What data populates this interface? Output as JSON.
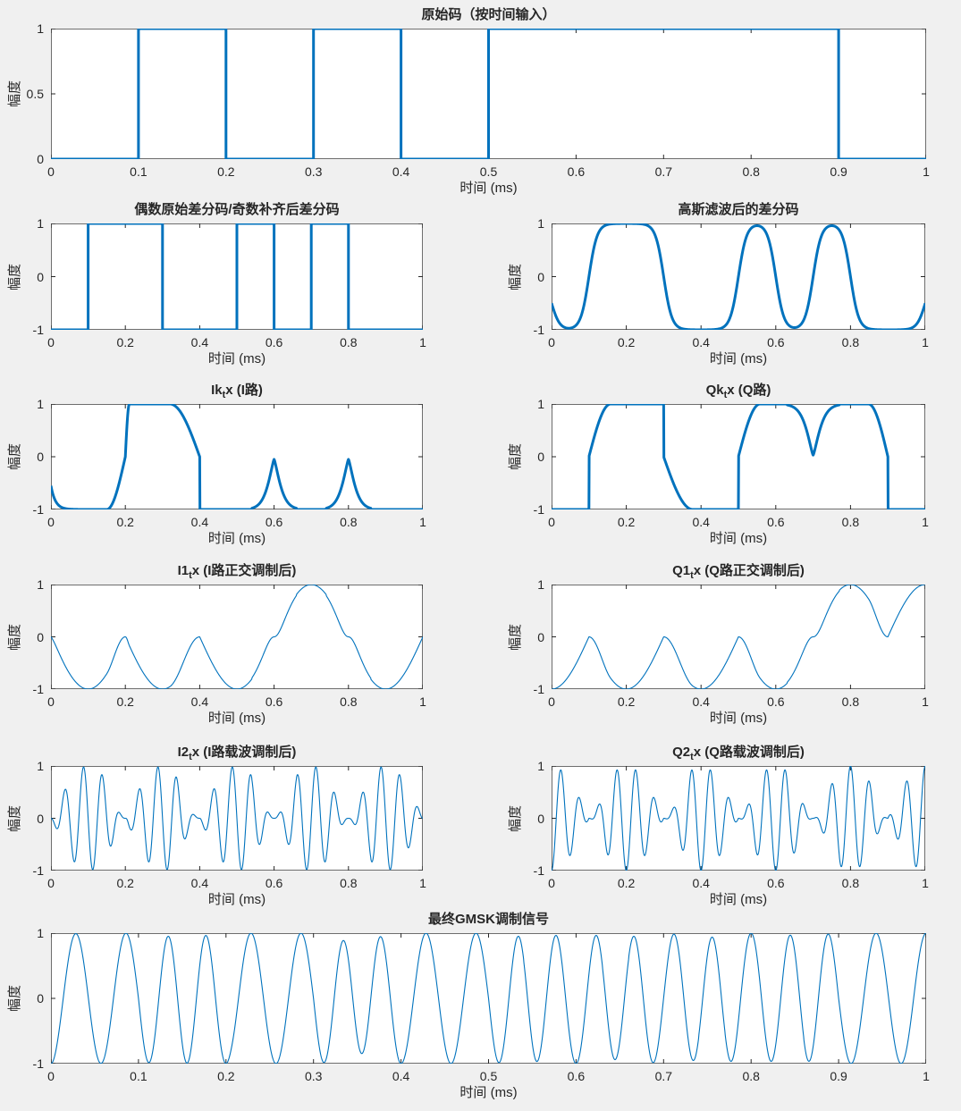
{
  "figure": {
    "background": "#f0f0f0",
    "axes_background": "#ffffff",
    "axis_color": "#262626",
    "box_color": "#6e6e6e",
    "line_color": "#0072BD",
    "xlabel": "时间 (ms)",
    "ylabel": "幅度"
  },
  "chart_data": {
    "type": "line",
    "time_unit": "ms",
    "x_range_ms": [
      0,
      1
    ],
    "bit_duration_ms": 0.1,
    "original_bits": [
      0,
      1,
      0,
      1,
      0,
      1,
      1,
      1,
      1,
      0
    ],
    "differential_nrz": [
      -1,
      1,
      1,
      -1,
      -1,
      1,
      -1,
      1,
      -1,
      -1
    ],
    "gaussian_transition_tau_ms": 0.011,
    "quadrature_carrier_cycles_per_ms": 2.5,
    "rf_carrier_cycles_per_ms": 20,
    "formulas": {
      "i1": "Ik(t) * sin(2*pi*2.5*t)",
      "q1": "Qk(t) * cos(2*pi*2.5*t)",
      "i2": "I1(t) * sin(2*pi*20*t)",
      "q2": "Q1(t) * cos(2*pi*20*t)",
      "gmsk": "I2(t) + Q2(t)"
    },
    "subplots": [
      {
        "id": "p1",
        "name": "original-code",
        "title": {
          "pre": "原始码（按时间输入）",
          "sub": null,
          "post": null
        },
        "xlabel": "时间 (ms)",
        "ylabel": "幅度",
        "xlim": [
          0,
          1
        ],
        "ylim": [
          0,
          1
        ],
        "xticks": [
          0,
          0.1,
          0.2,
          0.3,
          0.4,
          0.5,
          0.6,
          0.7,
          0.8,
          0.9,
          1
        ],
        "xtick_labels": [
          "0",
          "0.1",
          "0.2",
          "0.3",
          "0.4",
          "0.5",
          "0.6",
          "0.7",
          "0.8",
          "0.9",
          "1"
        ],
        "yticks": [
          0,
          0.5,
          1
        ],
        "ytick_labels": [
          "0",
          "0.5",
          "1"
        ],
        "line_width": 3,
        "signal": {
          "kind": "steps",
          "name": "bits",
          "levels": [
            0,
            1,
            0,
            1,
            0,
            1,
            1,
            1,
            1,
            0
          ]
        }
      },
      {
        "id": "p2",
        "name": "differential-code",
        "title": {
          "pre": "偶数原始差分码/奇数补齐后差分码",
          "sub": null,
          "post": null
        },
        "xlabel": "时间 (ms)",
        "ylabel": "幅度",
        "xlim": [
          0,
          1
        ],
        "ylim": [
          -1,
          1
        ],
        "xticks": [
          0,
          0.2,
          0.4,
          0.6,
          0.8,
          1
        ],
        "xtick_labels": [
          "0",
          "0.2",
          "0.4",
          "0.6",
          "0.8",
          "1"
        ],
        "yticks": [
          -1,
          0,
          1
        ],
        "ytick_labels": [
          "-1",
          "0",
          "1"
        ],
        "line_width": 3,
        "signal": {
          "kind": "steps",
          "name": "nrz",
          "levels": [
            -1,
            1,
            1,
            -1,
            -1,
            1,
            -1,
            1,
            -1,
            -1
          ]
        }
      },
      {
        "id": "p3",
        "name": "gaussian-filtered",
        "title": {
          "pre": "高斯滤波后的差分码",
          "sub": null,
          "post": null
        },
        "xlabel": "时间 (ms)",
        "ylabel": "幅度",
        "xlim": [
          0,
          1
        ],
        "ylim": [
          -1,
          1
        ],
        "xticks": [
          0,
          0.2,
          0.4,
          0.6,
          0.8,
          1
        ],
        "xtick_labels": [
          "0",
          "0.2",
          "0.4",
          "0.6",
          "0.8",
          "1"
        ],
        "yticks": [
          -1,
          0,
          1
        ],
        "ytick_labels": [
          "-1",
          "0",
          "1"
        ],
        "line_width": 3,
        "signal": {
          "kind": "gauss",
          "name": "g",
          "nrz": [
            -1,
            1,
            1,
            -1,
            -1,
            1,
            -1,
            1,
            -1,
            -1
          ],
          "tau": 0.011
        }
      },
      {
        "id": "p4",
        "name": "ik-channel",
        "title": {
          "pre": "Ik",
          "sub": "t",
          "post": "x (I路)"
        },
        "xlabel": "时间 (ms)",
        "ylabel": "幅度",
        "xlim": [
          0,
          1
        ],
        "ylim": [
          -1,
          1
        ],
        "xticks": [
          0,
          0.2,
          0.4,
          0.6,
          0.8,
          1
        ],
        "xtick_labels": [
          "0",
          "0.2",
          "0.4",
          "0.6",
          "0.8",
          "1"
        ],
        "yticks": [
          -1,
          0,
          1
        ],
        "ytick_labels": [
          "-1",
          "0",
          "1"
        ],
        "line_width": 3,
        "signal": {
          "kind": "piecewise",
          "name": "ik",
          "segments": [
            {
              "type": "edge",
              "from": 0,
              "to": 0.15,
              "a": -0.55,
              "b": -1,
              "tau": 0.012
            },
            {
              "type": "qcos",
              "from": 0.15,
              "to": 0.2,
              "a": -1,
              "b": 0
            },
            {
              "type": "qsin",
              "from": 0.2,
              "to": 0.211,
              "a": 0,
              "b": 1
            },
            {
              "type": "flat",
              "from": 0.211,
              "to": 0.32,
              "a": 1
            },
            {
              "type": "qcos",
              "from": 0.32,
              "to": 0.4,
              "a": 1,
              "b": 0
            },
            {
              "type": "flat",
              "from": 0.4,
              "to": 0.54,
              "a": -1
            },
            {
              "type": "spike",
              "from": 0.54,
              "to": 0.66,
              "base": -1,
              "amp": 0.95,
              "c": 0.6,
              "w": 0.022,
              "p": 1.3
            },
            {
              "type": "flat",
              "from": 0.66,
              "to": 0.74,
              "a": -1
            },
            {
              "type": "spike",
              "from": 0.74,
              "to": 0.86,
              "base": -1,
              "amp": 0.95,
              "c": 0.8,
              "w": 0.022,
              "p": 1.3
            },
            {
              "type": "flat",
              "from": 0.86,
              "to": 1.001,
              "a": -1
            }
          ]
        }
      },
      {
        "id": "p5",
        "name": "qk-channel",
        "title": {
          "pre": "Qk",
          "sub": "t",
          "post": "x (Q路)"
        },
        "xlabel": "时间 (ms)",
        "ylabel": "幅度",
        "xlim": [
          0,
          1
        ],
        "ylim": [
          -1,
          1
        ],
        "xticks": [
          0,
          0.2,
          0.4,
          0.6,
          0.8,
          1
        ],
        "xtick_labels": [
          "0",
          "0.2",
          "0.4",
          "0.6",
          "0.8",
          "1"
        ],
        "yticks": [
          -1,
          0,
          1
        ],
        "ytick_labels": [
          "-1",
          "0",
          "1"
        ],
        "line_width": 3,
        "signal": {
          "kind": "piecewise",
          "name": "qk",
          "segments": [
            {
              "type": "flat",
              "from": 0,
              "to": 0.1,
              "a": -1
            },
            {
              "type": "qsin",
              "from": 0.1,
              "to": 0.158,
              "a": 0,
              "b": 1
            },
            {
              "type": "flat",
              "from": 0.158,
              "to": 0.3,
              "a": 1
            },
            {
              "type": "qsin",
              "from": 0.3,
              "to": 0.378,
              "a": 0,
              "b": -1
            },
            {
              "type": "flat",
              "from": 0.378,
              "to": 0.5,
              "a": -1
            },
            {
              "type": "qsin",
              "from": 0.5,
              "to": 0.558,
              "a": 0,
              "b": 1
            },
            {
              "type": "flat",
              "from": 0.558,
              "to": 0.63,
              "a": 1
            },
            {
              "type": "dip",
              "from": 0.63,
              "to": 0.77,
              "base": 1,
              "amp": 0.97,
              "c": 0.7,
              "w": 0.024,
              "p": 1.3
            },
            {
              "type": "flat",
              "from": 0.77,
              "to": 0.848,
              "a": 1
            },
            {
              "type": "qcos",
              "from": 0.848,
              "to": 0.9,
              "a": 1,
              "b": 0
            },
            {
              "type": "flat",
              "from": 0.9,
              "to": 1.001,
              "a": -1
            }
          ]
        }
      },
      {
        "id": "p6",
        "name": "i1-quadrature",
        "title": {
          "pre": "I1",
          "sub": "t",
          "post": "x (I路正交调制后)"
        },
        "xlabel": "时间 (ms)",
        "ylabel": "幅度",
        "xlim": [
          0,
          1
        ],
        "ylim": [
          -1,
          1
        ],
        "xticks": [
          0,
          0.2,
          0.4,
          0.6,
          0.8,
          1
        ],
        "xtick_labels": [
          "0",
          "0.2",
          "0.4",
          "0.6",
          "0.8",
          "1"
        ],
        "yticks": [
          -1,
          0,
          1
        ],
        "ytick_labels": [
          "-1",
          "0",
          "1"
        ],
        "line_width": 1.1,
        "signal": {
          "kind": "product",
          "name": "i1",
          "source": "ik",
          "carrier": "sin",
          "freq": 2.5
        }
      },
      {
        "id": "p7",
        "name": "q1-quadrature",
        "title": {
          "pre": "Q1",
          "sub": "t",
          "post": "x (Q路正交调制后)"
        },
        "xlabel": "时间 (ms)",
        "ylabel": "幅度",
        "xlim": [
          0,
          1
        ],
        "ylim": [
          -1,
          1
        ],
        "xticks": [
          0,
          0.2,
          0.4,
          0.6,
          0.8,
          1
        ],
        "xtick_labels": [
          "0",
          "0.2",
          "0.4",
          "0.6",
          "0.8",
          "1"
        ],
        "yticks": [
          -1,
          0,
          1
        ],
        "ytick_labels": [
          "-1",
          "0",
          "1"
        ],
        "line_width": 1.1,
        "signal": {
          "kind": "product",
          "name": "q1",
          "source": "qk",
          "carrier": "cos",
          "freq": 2.5
        }
      },
      {
        "id": "p8",
        "name": "i2-carrier",
        "title": {
          "pre": "I2",
          "sub": "t",
          "post": "x (I路载波调制后)"
        },
        "xlabel": "时间 (ms)",
        "ylabel": "幅度",
        "xlim": [
          0,
          1
        ],
        "ylim": [
          -1,
          1
        ],
        "xticks": [
          0,
          0.2,
          0.4,
          0.6,
          0.8,
          1
        ],
        "xtick_labels": [
          "0",
          "0.2",
          "0.4",
          "0.6",
          "0.8",
          "1"
        ],
        "yticks": [
          -1,
          0,
          1
        ],
        "ytick_labels": [
          "-1",
          "0",
          "1"
        ],
        "line_width": 1.1,
        "signal": {
          "kind": "product",
          "name": "i2",
          "source": "i1",
          "carrier": "sin",
          "freq": 20
        }
      },
      {
        "id": "p9",
        "name": "q2-carrier",
        "title": {
          "pre": "Q2",
          "sub": "t",
          "post": "x (Q路载波调制后)"
        },
        "xlabel": "时间 (ms)",
        "ylabel": "幅度",
        "xlim": [
          0,
          1
        ],
        "ylim": [
          -1,
          1
        ],
        "xticks": [
          0,
          0.2,
          0.4,
          0.6,
          0.8,
          1
        ],
        "xtick_labels": [
          "0",
          "0.2",
          "0.4",
          "0.6",
          "0.8",
          "1"
        ],
        "yticks": [
          -1,
          0,
          1
        ],
        "ytick_labels": [
          "-1",
          "0",
          "1"
        ],
        "line_width": 1.1,
        "signal": {
          "kind": "product",
          "name": "q2",
          "source": "q1",
          "carrier": "cos",
          "freq": 20
        }
      },
      {
        "id": "p10",
        "name": "gmsk-final",
        "title": {
          "pre": "最终GMSK调制信号",
          "sub": null,
          "post": null
        },
        "xlabel": "时间 (ms)",
        "ylabel": "幅度",
        "xlim": [
          0,
          1
        ],
        "ylim": [
          -1,
          1
        ],
        "xticks": [
          0,
          0.1,
          0.2,
          0.3,
          0.4,
          0.5,
          0.6,
          0.7,
          0.8,
          0.9,
          1
        ],
        "xtick_labels": [
          "0",
          "0.1",
          "0.2",
          "0.3",
          "0.4",
          "0.5",
          "0.6",
          "0.7",
          "0.8",
          "0.9",
          "1"
        ],
        "yticks": [
          -1,
          0,
          1
        ],
        "ytick_labels": [
          "-1",
          "0",
          "1"
        ],
        "line_width": 1.1,
        "signal": {
          "kind": "sum",
          "name": "s",
          "sources": [
            "i2",
            "q2"
          ]
        }
      }
    ]
  }
}
